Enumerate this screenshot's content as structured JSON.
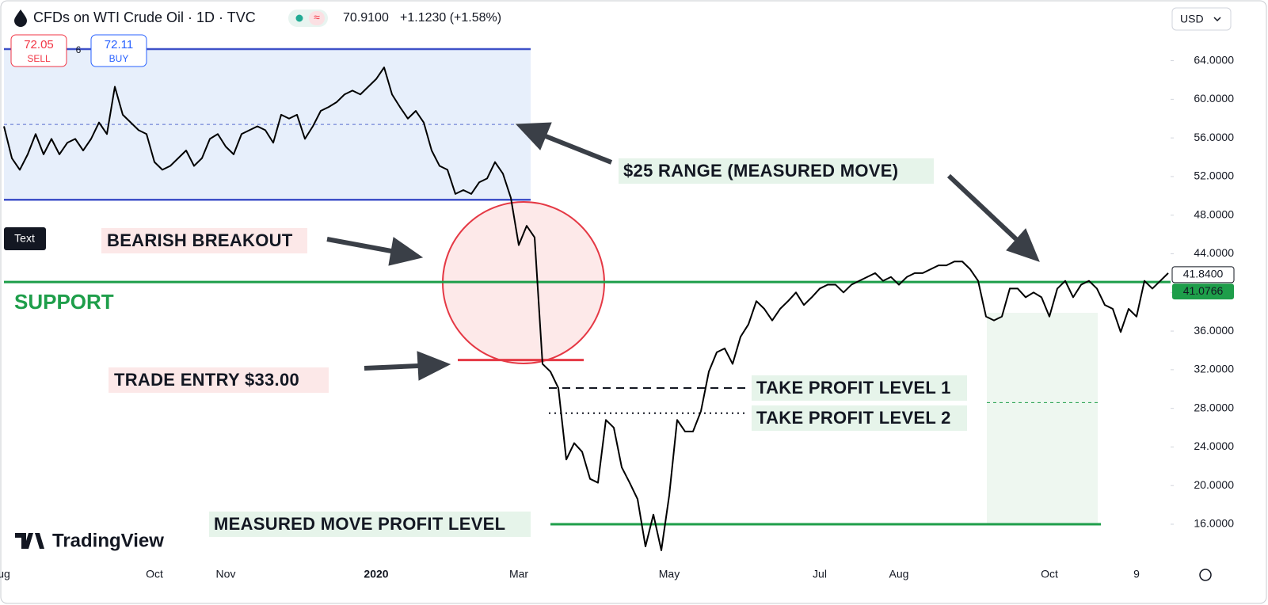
{
  "header": {
    "title": "CFDs on WTI Crude Oil · 1D · TVC",
    "last": "70.9100",
    "change": "+1.1230 (+1.58%)",
    "sell_price": "72.05",
    "sell": "SELL",
    "spread": "6",
    "buy_price": "72.11",
    "buy": "BUY",
    "currency": "USD",
    "tooltip": "Text",
    "brand": "TradingView"
  },
  "chart_data": {
    "type": "line",
    "color": "#000000",
    "grid": false,
    "categories": [
      "ug",
      null,
      null,
      null,
      null,
      null,
      null,
      null,
      null,
      null,
      null,
      null,
      null,
      null,
      null,
      null,
      null,
      null,
      null,
      "Oct",
      null,
      null,
      null,
      null,
      null,
      null,
      null,
      null,
      "Nov",
      null,
      null,
      null,
      null,
      null,
      null,
      null,
      null,
      null,
      null,
      null,
      null,
      null,
      null,
      null,
      null,
      null,
      null,
      "2020",
      null,
      null,
      null,
      null,
      null,
      null,
      null,
      null,
      null,
      null,
      null,
      null,
      null,
      null,
      null,
      null,
      null,
      "Mar",
      null,
      null,
      null,
      null,
      null,
      null,
      null,
      null,
      null,
      null,
      null,
      null,
      null,
      null,
      null,
      null,
      null,
      null,
      "May",
      null,
      null,
      null,
      null,
      null,
      null,
      null,
      null,
      null,
      null,
      null,
      null,
      null,
      null,
      null,
      null,
      null,
      null,
      "Jul",
      null,
      null,
      null,
      null,
      null,
      null,
      null,
      null,
      null,
      "Aug",
      null,
      null,
      null,
      null,
      null,
      null,
      null,
      null,
      null,
      null,
      null,
      null,
      null,
      null,
      null,
      null,
      null,
      null,
      "Oct",
      null,
      null,
      null,
      null,
      null,
      null,
      null,
      null,
      null,
      null,
      "9",
      null,
      null,
      null,
      null
    ],
    "values": [
      57.2,
      53.9,
      52.7,
      54.3,
      56.4,
      54.3,
      55.9,
      54.3,
      55.5,
      55.9,
      54.7,
      55.9,
      57.6,
      56.4,
      61.3,
      58.4,
      57.6,
      56.8,
      56.4,
      53.5,
      52.7,
      53.1,
      53.9,
      54.7,
      53.1,
      53.9,
      55.9,
      56.4,
      55.1,
      54.3,
      56.4,
      56.8,
      57.2,
      56.8,
      55.5,
      58.4,
      58.0,
      58.4,
      55.9,
      57.2,
      58.8,
      59.2,
      59.7,
      60.5,
      60.9,
      60.5,
      61.3,
      62.1,
      63.3,
      60.5,
      59.2,
      58.0,
      58.8,
      57.6,
      54.7,
      53.1,
      52.7,
      50.2,
      50.6,
      50.2,
      51.4,
      51.8,
      53.5,
      52.3,
      49.8,
      44.9,
      46.9,
      45.7,
      32.6,
      31.8,
      30.1,
      22.7,
      24.4,
      23.5,
      20.7,
      20.3,
      26.8,
      26.0,
      21.9,
      20.3,
      18.6,
      13.7,
      17.0,
      13.3,
      19.0,
      26.8,
      25.6,
      25.6,
      27.7,
      31.8,
      33.8,
      34.2,
      32.6,
      35.4,
      36.7,
      39.1,
      38.3,
      37.1,
      38.3,
      39.1,
      40.0,
      38.7,
      39.5,
      40.4,
      40.8,
      40.8,
      40.0,
      40.8,
      41.2,
      41.6,
      42.0,
      41.2,
      41.6,
      40.8,
      41.6,
      42.0,
      42.0,
      42.4,
      42.8,
      42.8,
      43.2,
      43.2,
      42.4,
      41.2,
      37.5,
      37.1,
      37.5,
      40.4,
      40.4,
      39.5,
      40.0,
      39.5,
      37.5,
      40.4,
      41.2,
      39.5,
      40.8,
      41.2,
      40.4,
      38.7,
      38.3,
      35.9,
      38.3,
      37.5,
      41.2,
      40.4,
      41.2,
      42.0
    ],
    "ylim": [
      11.9,
      67.0
    ],
    "yticks": [
      {
        "value": 16,
        "label": "16.0000"
      },
      {
        "value": 20,
        "label": "20.0000"
      },
      {
        "value": 24,
        "label": "24.0000"
      },
      {
        "value": 28,
        "label": "28.0000"
      },
      {
        "value": 32,
        "label": "32.0000"
      },
      {
        "value": 36,
        "label": "36.0000"
      },
      {
        "value": 40,
        "label": "40.0000"
      },
      {
        "value": 44,
        "label": "44.0000"
      },
      {
        "value": 48,
        "label": "48.0000"
      },
      {
        "value": 52,
        "label": "52.0000"
      },
      {
        "value": 56,
        "label": "56.0000"
      },
      {
        "value": 60,
        "label": "60.0000"
      },
      {
        "value": 64,
        "label": "64.0000"
      }
    ],
    "price_labels": [
      {
        "value": 41.84,
        "label": "41.8400"
      },
      {
        "value": 41.0766,
        "label": "41.0766"
      }
    ],
    "levels": {
      "range_high": 65.2,
      "range_mid": 57.4,
      "range_low": 49.6,
      "entry": 33.0,
      "tp1": 30.1,
      "tp2": 27.5,
      "measured": 16.0,
      "zone_mid": 28.6
    },
    "annotations": {
      "range": "$25 RANGE (MEASURED MOVE)",
      "breakout": "BEARISH BREAKOUT",
      "support": "SUPPORT",
      "entry": "TRADE ENTRY $33.00",
      "tp1": "TAKE PROFIT LEVEL 1",
      "tp2": "TAKE PROFIT LEVEL 2",
      "measured": "MEASURED MOVE PROFIT LEVEL"
    }
  }
}
